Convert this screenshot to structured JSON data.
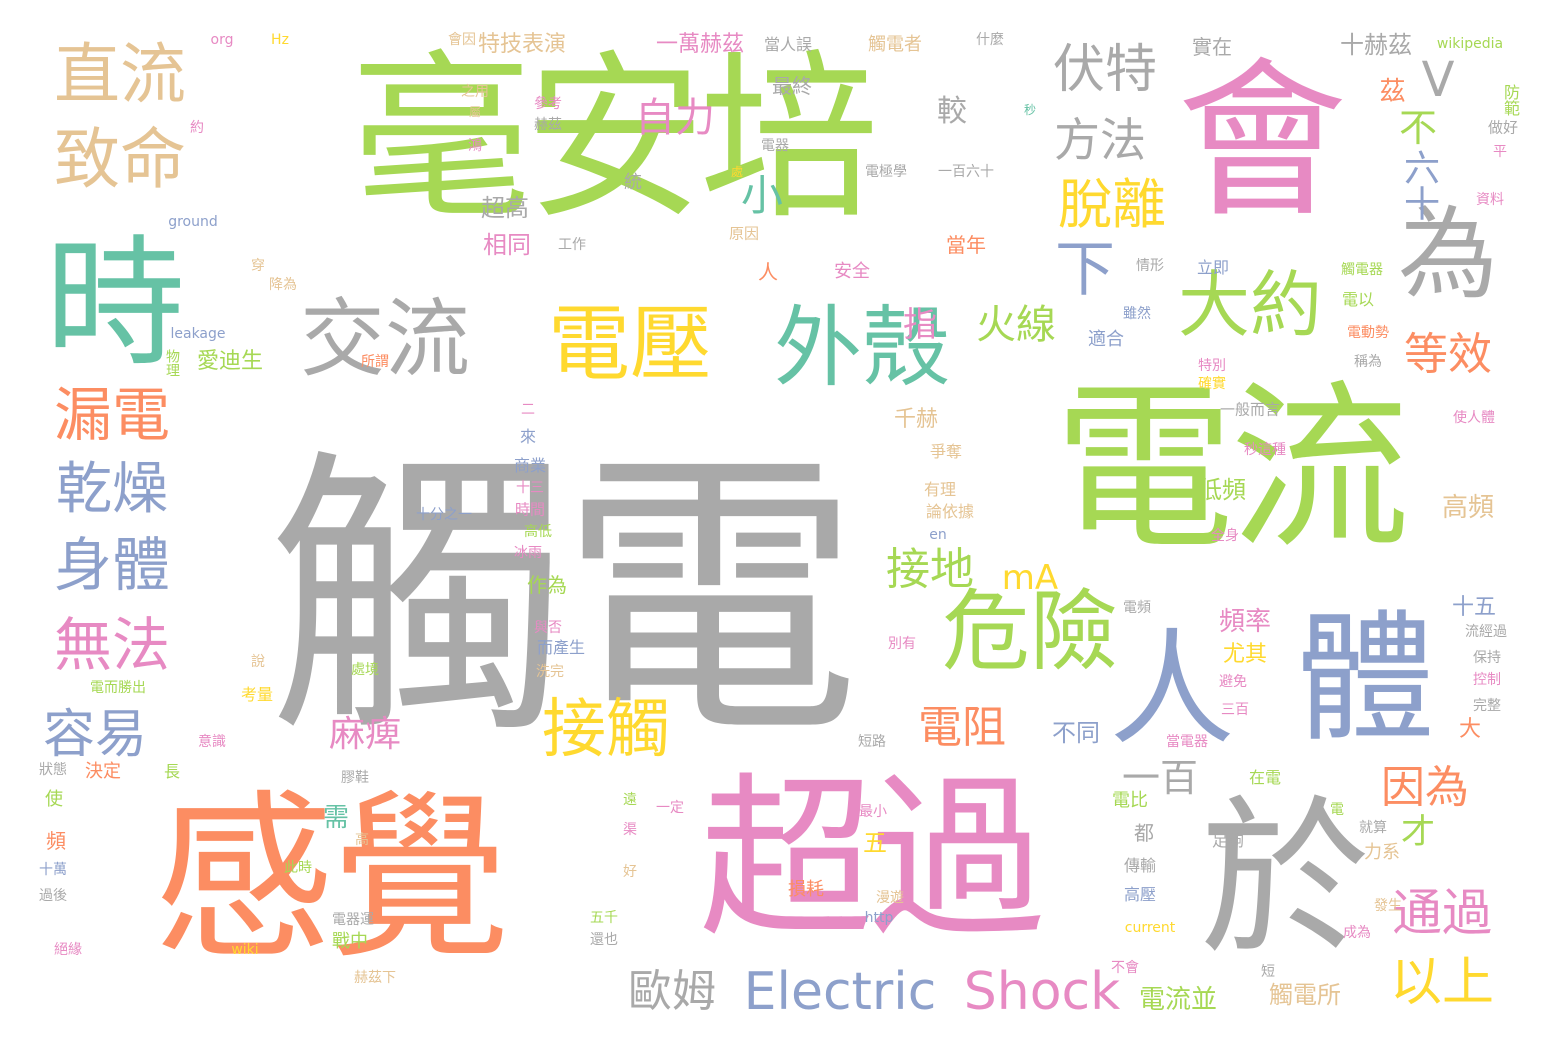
{
  "palette": {
    "gray": "#a9a9a9",
    "green": "#a6d854",
    "pink": "#e78ac3",
    "orange": "#fc8d62",
    "teal": "#66c2a5",
    "blue": "#8da0cb",
    "yellow": "#ffd92f",
    "tan": "#e5c494",
    "background": "#ffffff"
  },
  "words": [
    {
      "text": "觸電",
      "color": "gray",
      "weight": 1.0
    },
    {
      "text": "毫安培",
      "color": "green",
      "weight": 0.62
    },
    {
      "text": "電流",
      "color": "green",
      "weight": 0.6
    },
    {
      "text": "感覺",
      "color": "orange",
      "weight": 0.6
    },
    {
      "text": "超過",
      "color": "pink",
      "weight": 0.6
    },
    {
      "text": "會",
      "color": "pink",
      "weight": 0.55
    },
    {
      "text": "於",
      "color": "gray",
      "weight": 0.55
    },
    {
      "text": "時",
      "color": "teal",
      "weight": 0.5
    },
    {
      "text": "體",
      "color": "blue",
      "weight": 0.5
    },
    {
      "text": "人",
      "color": "blue",
      "weight": 0.45
    },
    {
      "text": "為",
      "color": "gray",
      "weight": 0.3
    },
    {
      "text": "危險",
      "color": "green",
      "weight": 0.35
    },
    {
      "text": "外殼",
      "color": "teal",
      "weight": 0.3
    },
    {
      "text": "電壓",
      "color": "yellow",
      "weight": 0.3
    },
    {
      "text": "交流",
      "color": "gray",
      "weight": 0.3
    },
    {
      "text": "大約",
      "color": "green",
      "weight": 0.28
    },
    {
      "text": "直流",
      "color": "tan",
      "weight": 0.25
    },
    {
      "text": "致命",
      "color": "tan",
      "weight": 0.25
    },
    {
      "text": "漏電",
      "color": "orange",
      "weight": 0.22
    },
    {
      "text": "乾燥",
      "color": "blue",
      "weight": 0.22
    },
    {
      "text": "身體",
      "color": "blue",
      "weight": 0.22
    },
    {
      "text": "無法",
      "color": "pink",
      "weight": 0.22
    },
    {
      "text": "容易",
      "color": "blue",
      "weight": 0.2
    },
    {
      "text": "接觸",
      "color": "yellow",
      "weight": 0.22
    },
    {
      "text": "伏特",
      "color": "gray",
      "weight": 0.18
    },
    {
      "text": "方法",
      "color": "gray",
      "weight": 0.16
    },
    {
      "text": "脫離",
      "color": "yellow",
      "weight": 0.18
    },
    {
      "text": "自力",
      "color": "pink",
      "weight": 0.14
    },
    {
      "text": "下",
      "color": "blue",
      "weight": 0.16
    },
    {
      "text": "小",
      "color": "teal",
      "weight": 0.12
    },
    {
      "text": "不",
      "color": "green",
      "weight": 0.12
    },
    {
      "text": "六十",
      "color": "blue",
      "weight": 0.12
    },
    {
      "text": "V",
      "color": "gray",
      "weight": 0.14
    },
    {
      "text": "火線",
      "color": "green",
      "weight": 0.13
    },
    {
      "text": "等效",
      "color": "orange",
      "weight": 0.14
    },
    {
      "text": "指",
      "color": "pink",
      "weight": 0.12
    },
    {
      "text": "接地",
      "color": "green",
      "weight": 0.14
    },
    {
      "text": "mA",
      "color": "yellow",
      "weight": 0.12
    },
    {
      "text": "麻痺",
      "color": "pink",
      "weight": 0.12
    },
    {
      "text": "電阻",
      "color": "orange",
      "weight": 0.13
    },
    {
      "text": "一百",
      "color": "gray",
      "weight": 0.12
    },
    {
      "text": "因為",
      "color": "orange",
      "weight": 0.13
    },
    {
      "text": "才",
      "color": "green",
      "weight": 0.1
    },
    {
      "text": "通過",
      "color": "pink",
      "weight": 0.14
    },
    {
      "text": "以上",
      "color": "yellow",
      "weight": 0.15
    },
    {
      "text": "歐姆",
      "color": "gray",
      "weight": 0.13
    },
    {
      "text": "Electric",
      "color": "blue",
      "weight": 0.15
    },
    {
      "text": "Shock",
      "color": "pink",
      "weight": 0.15
    },
    {
      "text": "電流並",
      "color": "green",
      "weight": 0.08
    },
    {
      "text": "觸電所",
      "color": "tan",
      "weight": 0.07
    },
    {
      "text": "十赫茲",
      "color": "gray",
      "weight": 0.07
    },
    {
      "text": "茲",
      "color": "orange",
      "weight": 0.07
    },
    {
      "text": "防範",
      "color": "green",
      "weight": 0.05
    },
    {
      "text": "做好",
      "color": "gray",
      "weight": 0.04
    },
    {
      "text": "特技表演",
      "color": "tan",
      "weight": 0.06
    },
    {
      "text": "一萬赫茲",
      "color": "pink",
      "weight": 0.06
    },
    {
      "text": "當人誤",
      "color": "gray",
      "weight": 0.05
    },
    {
      "text": "觸電者",
      "color": "tan",
      "weight": 0.05
    },
    {
      "text": "什麼",
      "color": "gray",
      "weight": 0.04
    },
    {
      "text": "wikipedia",
      "color": "green",
      "weight": 0.04
    },
    {
      "text": "實在",
      "color": "gray",
      "weight": 0.05
    },
    {
      "text": "會因",
      "color": "tan",
      "weight": 0.04
    },
    {
      "text": "org",
      "color": "pink",
      "weight": 0.04
    },
    {
      "text": "Hz",
      "color": "yellow",
      "weight": 0.04
    },
    {
      "text": "最終",
      "color": "gray",
      "weight": 0.05
    },
    {
      "text": "較",
      "color": "gray",
      "weight": 0.06
    },
    {
      "text": "超高",
      "color": "gray",
      "weight": 0.06
    },
    {
      "text": "相同",
      "color": "pink",
      "weight": 0.06
    },
    {
      "text": "工作",
      "color": "gray",
      "weight": 0.04
    },
    {
      "text": "原因",
      "color": "tan",
      "weight": 0.04
    },
    {
      "text": "當年",
      "color": "orange",
      "weight": 0.05
    },
    {
      "text": "安全",
      "color": "pink",
      "weight": 0.05
    },
    {
      "text": "人",
      "color": "orange",
      "weight": 0.05
    },
    {
      "text": "立即",
      "color": "blue",
      "weight": 0.04
    },
    {
      "text": "觸電器",
      "color": "green",
      "weight": 0.04
    },
    {
      "text": "電以",
      "color": "green",
      "weight": 0.04
    },
    {
      "text": "電動勢",
      "color": "orange",
      "weight": 0.04
    },
    {
      "text": "稱為",
      "color": "gray",
      "weight": 0.04
    },
    {
      "text": "適合",
      "color": "blue",
      "weight": 0.05
    },
    {
      "text": "雖然",
      "color": "blue",
      "weight": 0.04
    },
    {
      "text": "情形",
      "color": "gray",
      "weight": 0.04
    },
    {
      "text": "一般而言",
      "color": "gray",
      "weight": 0.04
    },
    {
      "text": "千赫",
      "color": "tan",
      "weight": 0.05
    },
    {
      "text": "爭奪",
      "color": "tan",
      "weight": 0.04
    },
    {
      "text": "有理",
      "color": "tan",
      "weight": 0.04
    },
    {
      "text": "論依據",
      "color": "tan",
      "weight": 0.04
    },
    {
      "text": "低頻",
      "color": "green",
      "weight": 0.05
    },
    {
      "text": "高頻",
      "color": "tan",
      "weight": 0.06
    },
    {
      "text": "頻率",
      "color": "pink",
      "weight": 0.06
    },
    {
      "text": "尤其",
      "color": "yellow",
      "weight": 0.05
    },
    {
      "text": "十五",
      "color": "blue",
      "weight": 0.05
    },
    {
      "text": "不同",
      "color": "blue",
      "weight": 0.05
    },
    {
      "text": "大",
      "color": "orange",
      "weight": 0.05
    },
    {
      "text": "愛迪生",
      "color": "green",
      "weight": 0.05
    },
    {
      "text": "ground",
      "color": "blue",
      "weight": 0.03
    },
    {
      "text": "leakage",
      "color": "blue",
      "weight": 0.03
    },
    {
      "text": "物理",
      "color": "green",
      "weight": 0.03
    },
    {
      "text": "所謂",
      "color": "orange",
      "weight": 0.03
    },
    {
      "text": "十分之一",
      "color": "blue",
      "weight": 0.03
    },
    {
      "text": "商業",
      "color": "blue",
      "weight": 0.04
    },
    {
      "text": "時間",
      "color": "pink",
      "weight": 0.04
    },
    {
      "text": "高低",
      "color": "green",
      "weight": 0.03
    },
    {
      "text": "作為",
      "color": "green",
      "weight": 0.04
    },
    {
      "text": "而產生",
      "color": "blue",
      "weight": 0.03
    },
    {
      "text": "洗完",
      "color": "tan",
      "weight": 0.03
    },
    {
      "text": "處境",
      "color": "green",
      "weight": 0.03
    },
    {
      "text": "考量",
      "color": "yellow",
      "weight": 0.04
    },
    {
      "text": "電而勝出",
      "color": "green",
      "weight": 0.03
    },
    {
      "text": "決定",
      "color": "orange",
      "weight": 0.04
    },
    {
      "text": "長",
      "color": "green",
      "weight": 0.04
    },
    {
      "text": "使",
      "color": "green",
      "weight": 0.04
    },
    {
      "text": "頻",
      "color": "orange",
      "weight": 0.04
    },
    {
      "text": "十萬",
      "color": "blue",
      "weight": 0.03
    },
    {
      "text": "過後",
      "color": "gray",
      "weight": 0.03
    },
    {
      "text": "絕緣",
      "color": "pink",
      "weight": 0.03
    },
    {
      "text": "戰中",
      "color": "green",
      "weight": 0.04
    },
    {
      "text": "電器運",
      "color": "gray",
      "weight": 0.03
    },
    {
      "text": "赫茲下",
      "color": "tan",
      "weight": 0.03
    },
    {
      "text": "需",
      "color": "teal",
      "weight": 0.05
    },
    {
      "text": "五",
      "color": "yellow",
      "weight": 0.05
    },
    {
      "text": "都",
      "color": "gray",
      "weight": 0.05
    },
    {
      "text": "電比",
      "color": "green",
      "weight": 0.04
    },
    {
      "text": "傳輸",
      "color": "gray",
      "weight": 0.04
    },
    {
      "text": "高壓",
      "color": "blue",
      "weight": 0.04
    },
    {
      "text": "損耗",
      "color": "orange",
      "weight": 0.04
    },
    {
      "text": "在電",
      "color": "green",
      "weight": 0.04
    },
    {
      "text": "current",
      "color": "yellow",
      "weight": 0.03
    },
    {
      "text": "http",
      "color": "blue",
      "weight": 0.03
    },
    {
      "text": "wiki",
      "color": "yellow",
      "weight": 0.03
    },
    {
      "text": "不會",
      "color": "pink",
      "weight": 0.03
    },
    {
      "text": "短",
      "color": "gray",
      "weight": 0.03
    },
    {
      "text": "成為",
      "color": "pink",
      "weight": 0.03
    },
    {
      "text": "發生",
      "color": "tan",
      "weight": 0.03
    },
    {
      "text": "力系",
      "color": "tan",
      "weight": 0.03
    },
    {
      "text": "就算",
      "color": "gray",
      "weight": 0.03
    },
    {
      "text": "足夠",
      "color": "gray",
      "weight": 0.03
    },
    {
      "text": "電",
      "color": "green",
      "weight": 0.03
    },
    {
      "text": "當電器",
      "color": "pink",
      "weight": 0.03
    },
    {
      "text": "三百",
      "color": "pink",
      "weight": 0.03
    },
    {
      "text": "避免",
      "color": "pink",
      "weight": 0.03
    },
    {
      "text": "完整",
      "color": "gray",
      "weight": 0.03
    },
    {
      "text": "保持",
      "color": "gray",
      "weight": 0.03
    },
    {
      "text": "流經過",
      "color": "gray",
      "weight": 0.03
    },
    {
      "text": "控制",
      "color": "pink",
      "weight": 0.03
    },
    {
      "text": "全身",
      "color": "pink",
      "weight": 0.03
    },
    {
      "text": "秒這種",
      "color": "pink",
      "weight": 0.03
    },
    {
      "text": "使人體",
      "color": "pink",
      "weight": 0.03
    },
    {
      "text": "確實",
      "color": "yellow",
      "weight": 0.03
    },
    {
      "text": "特別",
      "color": "pink",
      "weight": 0.03
    },
    {
      "text": "資料",
      "color": "pink",
      "weight": 0.03
    },
    {
      "text": "平",
      "color": "pink",
      "weight": 0.03
    },
    {
      "text": "參考",
      "color": "pink",
      "weight": 0.03
    },
    {
      "text": "赫茲",
      "color": "gray",
      "weight": 0.03
    },
    {
      "text": "之用",
      "color": "tan",
      "weight": 0.03
    },
    {
      "text": "屬",
      "color": "tan",
      "weight": 0.03
    },
    {
      "text": "約",
      "color": "pink",
      "weight": 0.03
    },
    {
      "text": "鴻",
      "color": "pink",
      "weight": 0.03
    },
    {
      "text": "秒",
      "color": "teal",
      "weight": 0.03
    },
    {
      "text": "電器",
      "color": "gray",
      "weight": 0.03
    },
    {
      "text": "處",
      "color": "yellow",
      "weight": 0.03
    },
    {
      "text": "統",
      "color": "gray",
      "weight": 0.04
    },
    {
      "text": "電極學",
      "color": "gray",
      "weight": 0.03
    },
    {
      "text": "一百六十",
      "color": "gray",
      "weight": 0.03
    },
    {
      "text": "穿",
      "color": "tan",
      "weight": 0.03
    },
    {
      "text": "降為",
      "color": "tan",
      "weight": 0.03
    },
    {
      "text": "二",
      "color": "pink",
      "weight": 0.03
    },
    {
      "text": "來",
      "color": "blue",
      "weight": 0.04
    },
    {
      "text": "十三",
      "color": "pink",
      "weight": 0.03
    },
    {
      "text": "冰雨",
      "color": "pink",
      "weight": 0.03
    },
    {
      "text": "en",
      "color": "blue",
      "weight": 0.03
    },
    {
      "text": "說",
      "color": "tan",
      "weight": 0.03
    },
    {
      "text": "意識",
      "color": "pink",
      "weight": 0.03
    },
    {
      "text": "狀態",
      "color": "gray",
      "weight": 0.03
    },
    {
      "text": "膠鞋",
      "color": "gray",
      "weight": 0.03
    },
    {
      "text": "高",
      "color": "tan",
      "weight": 0.03
    },
    {
      "text": "此時",
      "color": "green",
      "weight": 0.03
    },
    {
      "text": "遠",
      "color": "green",
      "weight": 0.03
    },
    {
      "text": "一定",
      "color": "pink",
      "weight": 0.03
    },
    {
      "text": "渠",
      "color": "pink",
      "weight": 0.03
    },
    {
      "text": "好",
      "color": "tan",
      "weight": 0.03
    },
    {
      "text": "五千",
      "color": "green",
      "weight": 0.03
    },
    {
      "text": "還也",
      "color": "gray",
      "weight": 0.03
    },
    {
      "text": "短路",
      "color": "gray",
      "weight": 0.03
    },
    {
      "text": "最小",
      "color": "pink",
      "weight": 0.03
    },
    {
      "text": "漫遊",
      "color": "tan",
      "weight": 0.03
    },
    {
      "text": "別有",
      "color": "pink",
      "weight": 0.03
    },
    {
      "text": "與否",
      "color": "pink",
      "weight": 0.03
    },
    {
      "text": "電頻",
      "color": "gray",
      "weight": 0.03
    }
  ]
}
